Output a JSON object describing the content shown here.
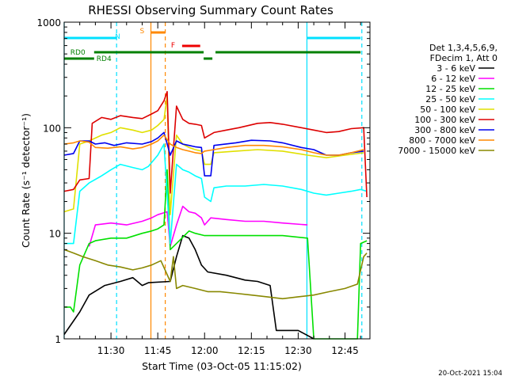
{
  "chart_data": {
    "type": "line",
    "title": "RHESSI Observing Summary Count Rates",
    "xlabel": "Start Time (03-Oct-05 11:15:02)",
    "ylabel": "Count Rate (s⁻¹ detector⁻¹)",
    "x_unit": "minutes after 11:15:02",
    "xlim": [
      0,
      98
    ],
    "ylim": [
      1,
      1000
    ],
    "yscale": "log",
    "x_ticks": [
      {
        "t": 15,
        "label": "11:30"
      },
      {
        "t": 30,
        "label": "11:45"
      },
      {
        "t": 45,
        "label": "12:00"
      },
      {
        "t": 60,
        "label": "12:15"
      },
      {
        "t": 75,
        "label": "12:30"
      },
      {
        "t": 90,
        "label": "12:45"
      }
    ],
    "y_ticks": [
      {
        "v": 1,
        "label": "1"
      },
      {
        "v": 10,
        "label": "10"
      },
      {
        "v": 100,
        "label": "100"
      },
      {
        "v": 1000,
        "label": "1000"
      }
    ],
    "legend_header": [
      "Det 1,3,4,5,6,9,",
      "FDecim 1, Att 0"
    ],
    "series": [
      {
        "name": "3 - 6 keV",
        "color": "#000000",
        "points": [
          [
            0,
            1.1
          ],
          [
            5,
            1.8
          ],
          [
            8,
            2.6
          ],
          [
            13,
            3.2
          ],
          [
            18,
            3.5
          ],
          [
            22,
            3.8
          ],
          [
            25,
            3.2
          ],
          [
            27,
            3.4
          ],
          [
            34,
            3.5
          ],
          [
            36,
            6.0
          ],
          [
            38,
            9.5
          ],
          [
            40,
            9.0
          ],
          [
            42,
            7.0
          ],
          [
            44,
            5.0
          ],
          [
            46,
            4.3
          ],
          [
            52,
            4.0
          ],
          [
            58,
            3.6
          ],
          [
            62,
            3.5
          ],
          [
            66,
            3.2
          ],
          [
            68,
            1.2
          ],
          [
            75,
            1.2
          ],
          [
            80,
            1.0
          ]
        ]
      },
      {
        "name": "6 - 12 keV",
        "color": "#ff00ff",
        "points": [
          [
            8,
            7.5
          ],
          [
            10,
            12.0
          ],
          [
            15,
            12.5
          ],
          [
            20,
            12.0
          ],
          [
            25,
            13.0
          ],
          [
            28,
            14.0
          ],
          [
            30,
            15.0
          ],
          [
            33,
            16.0
          ],
          [
            34,
            7.5
          ],
          [
            36,
            12.0
          ],
          [
            38,
            18.0
          ],
          [
            40,
            16.0
          ],
          [
            42,
            15.5
          ],
          [
            44,
            14.0
          ],
          [
            45,
            12.0
          ],
          [
            47,
            14.0
          ],
          [
            52,
            13.5
          ],
          [
            58,
            13.0
          ],
          [
            64,
            13.0
          ],
          [
            70,
            12.5
          ],
          [
            78,
            12.0
          ]
        ]
      },
      {
        "name": "12 - 25 keV",
        "color": "#00e000",
        "points": [
          [
            0,
            2.0
          ],
          [
            2,
            2.0
          ],
          [
            3,
            1.8
          ],
          [
            5,
            5.0
          ],
          [
            8,
            8.0
          ],
          [
            10,
            8.5
          ],
          [
            15,
            9.0
          ],
          [
            20,
            9.0
          ],
          [
            25,
            10.0
          ],
          [
            28,
            10.5
          ],
          [
            30,
            11.0
          ],
          [
            32,
            12.0
          ],
          [
            33,
            40.0
          ],
          [
            34,
            7.0
          ],
          [
            36,
            8.0
          ],
          [
            40,
            10.5
          ],
          [
            42,
            10.0
          ],
          [
            45,
            9.5
          ],
          [
            50,
            9.5
          ],
          [
            55,
            9.5
          ],
          [
            60,
            9.5
          ],
          [
            65,
            9.5
          ],
          [
            70,
            9.5
          ],
          [
            78,
            9.0
          ],
          [
            80,
            1.0
          ],
          [
            88,
            1.0
          ],
          [
            94,
            1.0
          ],
          [
            95,
            8.0
          ],
          [
            97,
            8.5
          ]
        ]
      },
      {
        "name": "25 - 50 keV",
        "color": "#00ffff",
        "points": [
          [
            0,
            8.0
          ],
          [
            3,
            8.0
          ],
          [
            5,
            25.0
          ],
          [
            8,
            30.0
          ],
          [
            12,
            35.0
          ],
          [
            15,
            40.0
          ],
          [
            18,
            45.0
          ],
          [
            22,
            42.0
          ],
          [
            25,
            40.0
          ],
          [
            27,
            43.0
          ],
          [
            30,
            55.0
          ],
          [
            32,
            70.0
          ],
          [
            34,
            8.0
          ],
          [
            36,
            45.0
          ],
          [
            38,
            40.0
          ],
          [
            40,
            38.0
          ],
          [
            42,
            35.0
          ],
          [
            44,
            33.0
          ],
          [
            45,
            22.0
          ],
          [
            47,
            20.0
          ],
          [
            48,
            27.0
          ],
          [
            52,
            28.0
          ],
          [
            58,
            28.0
          ],
          [
            64,
            29.0
          ],
          [
            70,
            28.0
          ],
          [
            76,
            26.0
          ],
          [
            80,
            24.0
          ],
          [
            84,
            23.0
          ],
          [
            88,
            24.0
          ],
          [
            92,
            25.0
          ],
          [
            95,
            26.0
          ],
          [
            97,
            25.0
          ]
        ]
      },
      {
        "name": "50 - 100 keV",
        "color": "#e0e000",
        "points": [
          [
            0,
            16.0
          ],
          [
            3,
            17.0
          ],
          [
            5,
            70.0
          ],
          [
            8,
            75.0
          ],
          [
            12,
            85.0
          ],
          [
            15,
            90.0
          ],
          [
            18,
            100.0
          ],
          [
            22,
            95.0
          ],
          [
            25,
            90.0
          ],
          [
            28,
            95.0
          ],
          [
            30,
            105.0
          ],
          [
            32,
            120.0
          ],
          [
            33,
            200.0
          ],
          [
            34,
            15.0
          ],
          [
            36,
            85.0
          ],
          [
            38,
            70.0
          ],
          [
            40,
            65.0
          ],
          [
            42,
            62.0
          ],
          [
            44,
            60.0
          ],
          [
            45,
            45.0
          ],
          [
            47,
            45.0
          ],
          [
            48,
            58.0
          ],
          [
            55,
            60.0
          ],
          [
            62,
            62.0
          ],
          [
            70,
            60.0
          ],
          [
            78,
            55.0
          ],
          [
            84,
            52.0
          ],
          [
            90,
            55.0
          ],
          [
            96,
            58.0
          ]
        ]
      },
      {
        "name": "100 - 300 keV",
        "color": "#dd0000",
        "points": [
          [
            0,
            25.0
          ],
          [
            3,
            26.0
          ],
          [
            5,
            32.0
          ],
          [
            8,
            33.0
          ],
          [
            9,
            110.0
          ],
          [
            12,
            125.0
          ],
          [
            15,
            120.0
          ],
          [
            18,
            130.0
          ],
          [
            22,
            125.0
          ],
          [
            25,
            122.0
          ],
          [
            28,
            135.0
          ],
          [
            30,
            145.0
          ],
          [
            32,
            180.0
          ],
          [
            33,
            220.0
          ],
          [
            34,
            24.0
          ],
          [
            36,
            160.0
          ],
          [
            38,
            120.0
          ],
          [
            40,
            110.0
          ],
          [
            42,
            108.0
          ],
          [
            44,
            105.0
          ],
          [
            45,
            80.0
          ],
          [
            48,
            90.0
          ],
          [
            52,
            95.0
          ],
          [
            56,
            100.0
          ],
          [
            62,
            110.0
          ],
          [
            66,
            112.0
          ],
          [
            70,
            108.0
          ],
          [
            76,
            100.0
          ],
          [
            80,
            95.0
          ],
          [
            84,
            90.0
          ],
          [
            88,
            92.0
          ],
          [
            92,
            98.0
          ],
          [
            96,
            100.0
          ],
          [
            97,
            22.0
          ]
        ]
      },
      {
        "name": "300 - 800 keV",
        "color": "#0000ee",
        "points": [
          [
            0,
            55.0
          ],
          [
            3,
            57.0
          ],
          [
            5,
            75.0
          ],
          [
            8,
            75.0
          ],
          [
            10,
            70.0
          ],
          [
            13,
            72.0
          ],
          [
            16,
            68.0
          ],
          [
            20,
            72.0
          ],
          [
            25,
            70.0
          ],
          [
            28,
            74.0
          ],
          [
            30,
            80.0
          ],
          [
            32,
            90.0
          ],
          [
            34,
            55.0
          ],
          [
            36,
            75.0
          ],
          [
            38,
            70.0
          ],
          [
            40,
            68.0
          ],
          [
            42,
            66.0
          ],
          [
            44,
            65.0
          ],
          [
            45,
            35.0
          ],
          [
            47,
            35.0
          ],
          [
            48,
            68.0
          ],
          [
            55,
            72.0
          ],
          [
            60,
            76.0
          ],
          [
            66,
            75.0
          ],
          [
            70,
            72.0
          ],
          [
            76,
            65.0
          ],
          [
            80,
            62.0
          ],
          [
            84,
            55.0
          ],
          [
            88,
            55.0
          ],
          [
            92,
            58.0
          ],
          [
            96,
            60.0
          ]
        ]
      },
      {
        "name": "800 - 7000 keV",
        "color": "#ff8800",
        "points": [
          [
            0,
            70.0
          ],
          [
            3,
            72.0
          ],
          [
            5,
            75.0
          ],
          [
            8,
            73.0
          ],
          [
            10,
            65.0
          ],
          [
            14,
            64.0
          ],
          [
            18,
            66.0
          ],
          [
            22,
            63.0
          ],
          [
            25,
            65.0
          ],
          [
            28,
            70.0
          ],
          [
            30,
            75.0
          ],
          [
            32,
            85.0
          ],
          [
            34,
            70.0
          ],
          [
            36,
            65.0
          ],
          [
            38,
            62.0
          ],
          [
            40,
            60.0
          ],
          [
            42,
            58.0
          ],
          [
            44,
            57.0
          ],
          [
            45,
            60.0
          ],
          [
            48,
            62.0
          ],
          [
            52,
            65.0
          ],
          [
            58,
            68.0
          ],
          [
            64,
            68.0
          ],
          [
            70,
            66.0
          ],
          [
            76,
            62.0
          ],
          [
            80,
            58.0
          ],
          [
            84,
            55.0
          ],
          [
            88,
            55.0
          ],
          [
            92,
            58.0
          ],
          [
            96,
            62.0
          ]
        ]
      },
      {
        "name": "7000 - 15000 keV",
        "color": "#888800",
        "points": [
          [
            0,
            7.0
          ],
          [
            3,
            6.5
          ],
          [
            6,
            6.0
          ],
          [
            10,
            5.5
          ],
          [
            14,
            5.0
          ],
          [
            18,
            4.8
          ],
          [
            22,
            4.5
          ],
          [
            25,
            4.7
          ],
          [
            28,
            5.0
          ],
          [
            31,
            5.5
          ],
          [
            34,
            3.5
          ],
          [
            35,
            6.0
          ],
          [
            36,
            3.0
          ],
          [
            38,
            3.2
          ],
          [
            42,
            3.0
          ],
          [
            46,
            2.8
          ],
          [
            50,
            2.8
          ],
          [
            55,
            2.7
          ],
          [
            60,
            2.6
          ],
          [
            65,
            2.5
          ],
          [
            70,
            2.4
          ],
          [
            75,
            2.5
          ],
          [
            80,
            2.6
          ],
          [
            85,
            2.8
          ],
          [
            90,
            3.0
          ],
          [
            94,
            3.3
          ],
          [
            96,
            6.0
          ],
          [
            97,
            6.5
          ]
        ]
      }
    ],
    "flag_bars": [
      {
        "label": "RD0",
        "color": "#008000",
        "level": "upper",
        "segments": [
          [
            9.6,
            44.7
          ],
          [
            48.5,
            95
          ]
        ]
      },
      {
        "label": "RD4",
        "color": "#008000",
        "level": "lower",
        "segments": [
          [
            0,
            9.6
          ],
          [
            44.7,
            47.5
          ]
        ]
      },
      {
        "label": "N",
        "color": "#00e0ff",
        "level": "top",
        "segments": [
          [
            0,
            16.8
          ],
          [
            77.8,
            95
          ]
        ]
      },
      {
        "label": "S",
        "color": "#ff8800",
        "level": "saa",
        "segments": [
          [
            27.8,
            32.4
          ]
        ]
      },
      {
        "label": "F",
        "color": "#ee0000",
        "level": "flare",
        "segments": [
          [
            37.8,
            43.6
          ]
        ]
      }
    ],
    "markers": [
      {
        "t": 0,
        "color": "#00e0ff",
        "style": "solid"
      },
      {
        "t": 16.8,
        "color": "#00e0ff",
        "style": "dashed"
      },
      {
        "t": 27.8,
        "color": "#ff8800",
        "style": "solid"
      },
      {
        "t": 32.4,
        "color": "#ff8800",
        "style": "dashed"
      },
      {
        "t": 77.8,
        "color": "#00e0ff",
        "style": "solid"
      },
      {
        "t": 95.4,
        "color": "#00e0ff",
        "style": "dashed"
      }
    ],
    "grid": false,
    "legend_position": "right"
  },
  "footer": {
    "timestamp": "20-Oct-2021 15:04"
  }
}
